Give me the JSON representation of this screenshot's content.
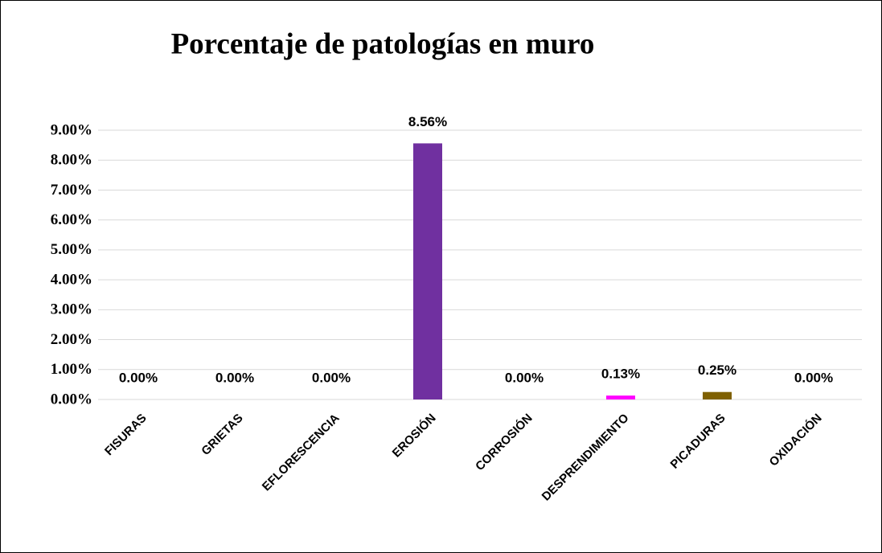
{
  "chart_data": {
    "type": "bar",
    "title": "Porcentaje de patologías en muro",
    "categories": [
      "FISURAS",
      "GRIETAS",
      "EFLORESCENCIA",
      "EROSIÓN",
      "CORROSIÓN",
      "DESPRENDIMIENTO",
      "PICADURAS",
      "OXIDACIÓN"
    ],
    "values": [
      0,
      0,
      0,
      8.56,
      0,
      0.13,
      0.25,
      0
    ],
    "value_labels": [
      "0.00%",
      "0.00%",
      "0.00%",
      "8.56%",
      "0.00%",
      "0.13%",
      "0.25%",
      "0.00%"
    ],
    "colors": [
      "#4472c4",
      "#ed7d31",
      "#a5a5a5",
      "#7030a0",
      "#5b9bd5",
      "#ff00ff",
      "#7f6000",
      "#70ad47"
    ],
    "ylim": [
      0,
      9
    ],
    "yticks": [
      {
        "value": 0,
        "label": "0.00%"
      },
      {
        "value": 1,
        "label": "1.00%"
      },
      {
        "value": 2,
        "label": "2.00%"
      },
      {
        "value": 3,
        "label": "3.00%"
      },
      {
        "value": 4,
        "label": "4.00%"
      },
      {
        "value": 5,
        "label": "5.00%"
      },
      {
        "value": 6,
        "label": "6.00%"
      },
      {
        "value": 7,
        "label": "7.00%"
      },
      {
        "value": 8,
        "label": "8.00%"
      },
      {
        "value": 9,
        "label": "9.00%"
      }
    ],
    "grid": true
  }
}
